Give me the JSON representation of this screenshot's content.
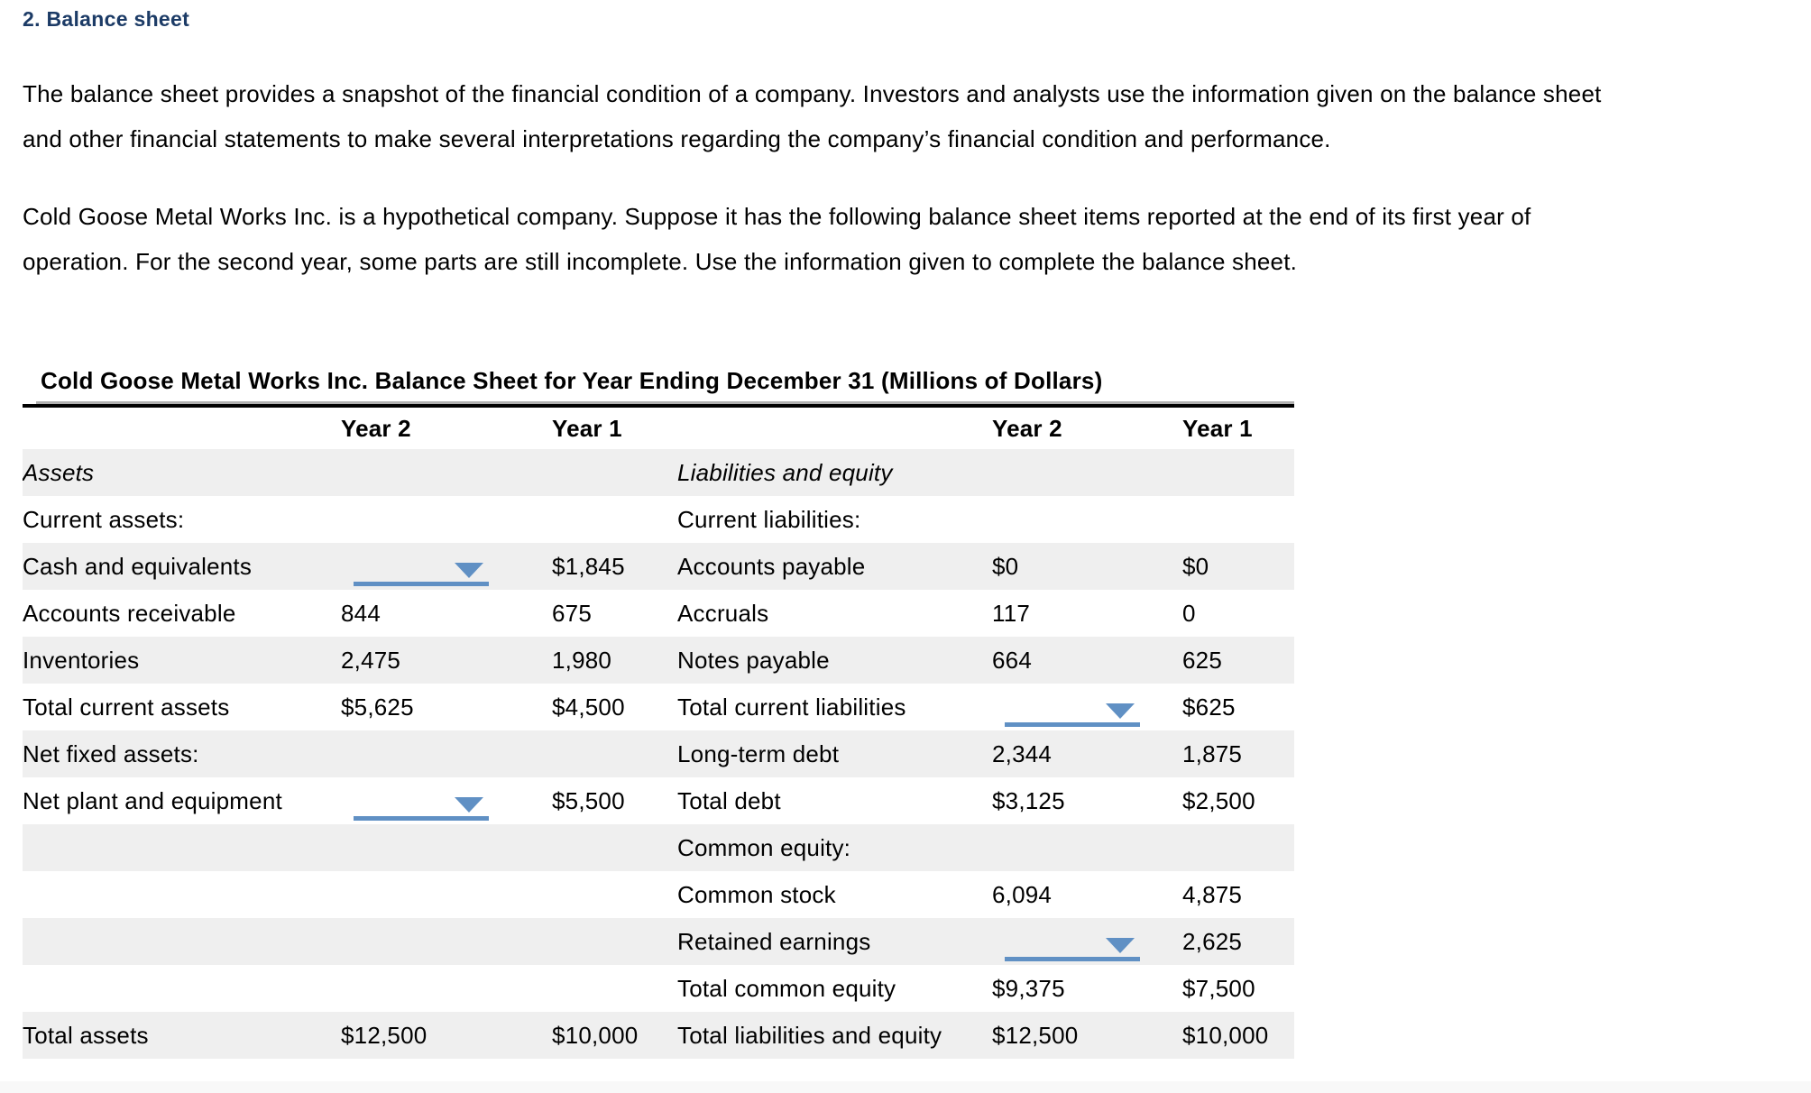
{
  "colors": {
    "heading_navy": "#1c3b66",
    "accent_blue": "#6090c4",
    "row_stripe": "#efefef",
    "title_rule_gray": "#b0b0b0"
  },
  "section": {
    "title": "2. Balance sheet"
  },
  "paragraphs": [
    {
      "lines": [
        "The balance sheet provides a snapshot of the financial condition of a company. Investors and analysts use the information given on the balance sheet",
        "and other financial statements to make several interpretations regarding the company’s financial condition and performance."
      ]
    },
    {
      "lines": [
        "Cold Goose Metal Works Inc. is a hypothetical company. Suppose it has the following balance sheet items reported at the end of its first year of",
        "operation. For the second year, some parts are still incomplete. Use the information given to complete the balance sheet."
      ]
    }
  ],
  "table": {
    "title": "Cold Goose Metal Works Inc. Balance Sheet for Year Ending December 31 (Millions of Dollars)",
    "column_headers": [
      "Year 2",
      "Year 1",
      "Year 2",
      "Year 1"
    ],
    "rows": [
      {
        "cells": [
          {
            "v": "Assets",
            "italic": true
          },
          {},
          {},
          {
            "v": "Liabilities and equity",
            "italic": true
          },
          {},
          {}
        ]
      },
      {
        "cells": [
          {
            "v": "Current assets:"
          },
          {},
          {},
          {
            "v": "Current liabilities:"
          },
          {},
          {}
        ]
      },
      {
        "cells": [
          {
            "v": "Cash and equivalents"
          },
          {
            "drop": true
          },
          {
            "v": "$1,845"
          },
          {
            "v": "Accounts payable"
          },
          {
            "v": "$0"
          },
          {
            "v": "$0"
          }
        ]
      },
      {
        "cells": [
          {
            "v": "Accounts receivable"
          },
          {
            "v": "844"
          },
          {
            "v": "675"
          },
          {
            "v": "Accruals"
          },
          {
            "v": "117"
          },
          {
            "v": "0"
          }
        ]
      },
      {
        "cells": [
          {
            "v": "Inventories"
          },
          {
            "v": "2,475"
          },
          {
            "v": "1,980"
          },
          {
            "v": "Notes payable"
          },
          {
            "v": "664"
          },
          {
            "v": "625"
          }
        ]
      },
      {
        "cells": [
          {
            "v": "Total current assets"
          },
          {
            "v": "$5,625"
          },
          {
            "v": "$4,500"
          },
          {
            "v": "Total current liabilities"
          },
          {
            "drop": true
          },
          {
            "v": "$625"
          }
        ]
      },
      {
        "cells": [
          {
            "v": "Net fixed assets:"
          },
          {},
          {},
          {
            "v": "Long-term debt"
          },
          {
            "v": "2,344"
          },
          {
            "v": "1,875"
          }
        ]
      },
      {
        "cells": [
          {
            "v": "Net plant and equipment"
          },
          {
            "drop": true
          },
          {
            "v": "$5,500"
          },
          {
            "v": "Total debt"
          },
          {
            "v": "$3,125"
          },
          {
            "v": "$2,500"
          }
        ]
      },
      {
        "cells": [
          {},
          {},
          {},
          {
            "v": "Common equity:"
          },
          {},
          {}
        ]
      },
      {
        "cells": [
          {},
          {},
          {},
          {
            "v": "Common stock"
          },
          {
            "v": "6,094"
          },
          {
            "v": "4,875"
          }
        ]
      },
      {
        "cells": [
          {},
          {},
          {},
          {
            "v": "Retained earnings"
          },
          {
            "drop": true
          },
          {
            "v": "2,625"
          }
        ]
      },
      {
        "cells": [
          {},
          {},
          {},
          {
            "v": "Total common equity"
          },
          {
            "v": "$9,375"
          },
          {
            "v": "$7,500"
          }
        ]
      },
      {
        "cells": [
          {
            "v": "Total assets"
          },
          {
            "v": "$12,500"
          },
          {
            "v": "$10,000"
          },
          {
            "v": "Total liabilities and equity"
          },
          {
            "v": "$12,500"
          },
          {
            "v": "$10,000"
          }
        ]
      }
    ]
  }
}
